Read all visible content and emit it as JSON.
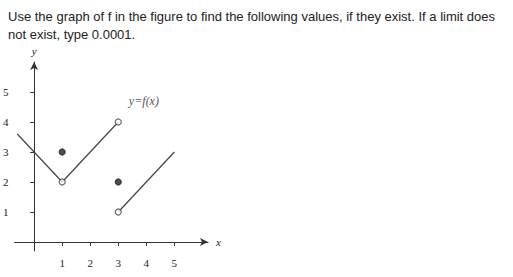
{
  "chart_data": {
    "type": "line",
    "title": "Use the graph of f in the figure to find the following values, if they exist. If a limit does not exist, type 0.0001.",
    "x_label": "x",
    "y_label": "y",
    "xlim": [
      -0.7,
      6.2
    ],
    "ylim": [
      -0.3,
      6
    ],
    "xticks": [
      1,
      2,
      3,
      4,
      5
    ],
    "yticks": [
      1,
      2,
      3,
      4,
      5
    ],
    "grid": false,
    "series": [
      {
        "type": "line",
        "color": "#444444",
        "x": [
          -0.6,
          1
        ],
        "values": [
          3.6,
          2
        ]
      },
      {
        "type": "line",
        "color": "#444444",
        "x": [
          1,
          3
        ],
        "values": [
          2,
          4
        ]
      },
      {
        "type": "line",
        "color": "#444444",
        "x": [
          3,
          5
        ],
        "values": [
          1,
          3
        ]
      },
      {
        "type": "scatter",
        "marker": "open",
        "color": "#444444",
        "x": [
          1,
          3,
          3
        ],
        "values": [
          2,
          4,
          1
        ]
      },
      {
        "type": "scatter",
        "marker": "filled",
        "color": "#222222",
        "x": [
          1,
          3
        ],
        "values": [
          3,
          2
        ]
      }
    ],
    "annotations": [
      {
        "text": "y=f(x)",
        "x": 3.2,
        "y": 4.7
      }
    ]
  }
}
